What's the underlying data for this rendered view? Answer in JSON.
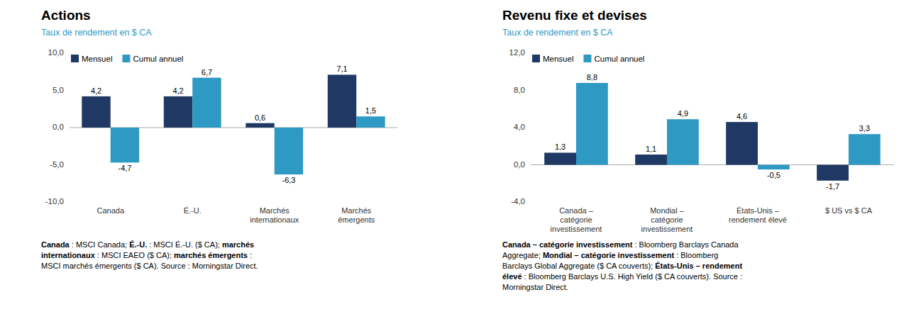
{
  "chart_data": [
    {
      "type": "bar",
      "title": "Actions",
      "subtitle": "Taux de rendement en $ CA",
      "categories": [
        "Canada",
        "É.-U.",
        "Marchés\ninternationaux",
        "Marchés\némergents"
      ],
      "series": [
        {
          "name": "Mensuel",
          "color": "#1F3864",
          "values": [
            4.2,
            4.2,
            0.6,
            7.1
          ],
          "value_labels": [
            "4,2",
            "4,2",
            "0,6",
            "7,1"
          ]
        },
        {
          "name": "Cumul annuel",
          "color": "#2E9AC4",
          "values": [
            -4.7,
            6.7,
            -6.3,
            1.5
          ],
          "value_labels": [
            "-4,7",
            "6,7",
            "-6,3",
            "1,5"
          ]
        }
      ],
      "ylim": [
        -10.0,
        10.0
      ],
      "yticks": [
        {
          "value": -10.0,
          "label": "-10,0"
        },
        {
          "value": -5.0,
          "label": "-5,0"
        },
        {
          "value": 0.0,
          "label": "0,0"
        },
        {
          "value": 5.0,
          "label": "5,0"
        },
        {
          "value": 10.0,
          "label": "10,0"
        }
      ],
      "grid": false,
      "legend": "upper left",
      "data_labels": true,
      "footnote": [
        {
          "text": "Canada",
          "bold": true
        },
        {
          "text": " : MSCI Canada; ",
          "bold": false
        },
        {
          "text": "É.-U.",
          "bold": true
        },
        {
          "text": " : MSCI É.-U. ($ CA); ",
          "bold": false
        },
        {
          "text": "marchés\ninternationaux",
          "bold": true
        },
        {
          "text": " : MSCI EAEO ($ CA); ",
          "bold": false
        },
        {
          "text": "marchés émergents",
          "bold": true
        },
        {
          "text": " :\nMSCI marchés émergents ($ CA). Source : Morningstar Direct.",
          "bold": false
        }
      ]
    },
    {
      "type": "bar",
      "title": "Revenu fixe et devises",
      "subtitle": "Taux de rendement en $ CA",
      "categories": [
        "Canada –\ncatégorie\ninvestissement",
        "Mondial –\ncatégorie\ninvestissement",
        "États-Unis –\nrendement élevé",
        "$ US vs $ CA"
      ],
      "series": [
        {
          "name": "Mensuel",
          "color": "#1F3864",
          "values": [
            1.3,
            1.1,
            4.6,
            -1.7
          ],
          "value_labels": [
            "1,3",
            "1,1",
            "4,6",
            "-1,7"
          ]
        },
        {
          "name": "Cumul annuel",
          "color": "#2E9AC4",
          "values": [
            8.8,
            4.9,
            -0.5,
            3.3
          ],
          "value_labels": [
            "8,8",
            "4,9",
            "-0,5",
            "3,3"
          ]
        }
      ],
      "ylim": [
        -4.0,
        12.0
      ],
      "yticks": [
        {
          "value": -4.0,
          "label": "-4,0"
        },
        {
          "value": 0.0,
          "label": "0,0"
        },
        {
          "value": 4.0,
          "label": "4,0"
        },
        {
          "value": 8.0,
          "label": "8,0"
        },
        {
          "value": 12.0,
          "label": "12,0"
        }
      ],
      "grid": false,
      "legend": "upper left",
      "data_labels": true,
      "footnote": [
        {
          "text": "Canada – catégorie investissement",
          "bold": true
        },
        {
          "text": " : Bloomberg Barclays Canada\nAggregate; ",
          "bold": false
        },
        {
          "text": "Mondial – catégorie investissement",
          "bold": true
        },
        {
          "text": " : Bloomberg\nBarclays Global Aggregate ($ CA couverts); ",
          "bold": false
        },
        {
          "text": "États-Unis – rendement\nélevé",
          "bold": true
        },
        {
          "text": " : Bloomberg Barclays U.S. High Yield ($ CA couverts). Source :\nMorningstar Direct.",
          "bold": false
        }
      ]
    }
  ]
}
